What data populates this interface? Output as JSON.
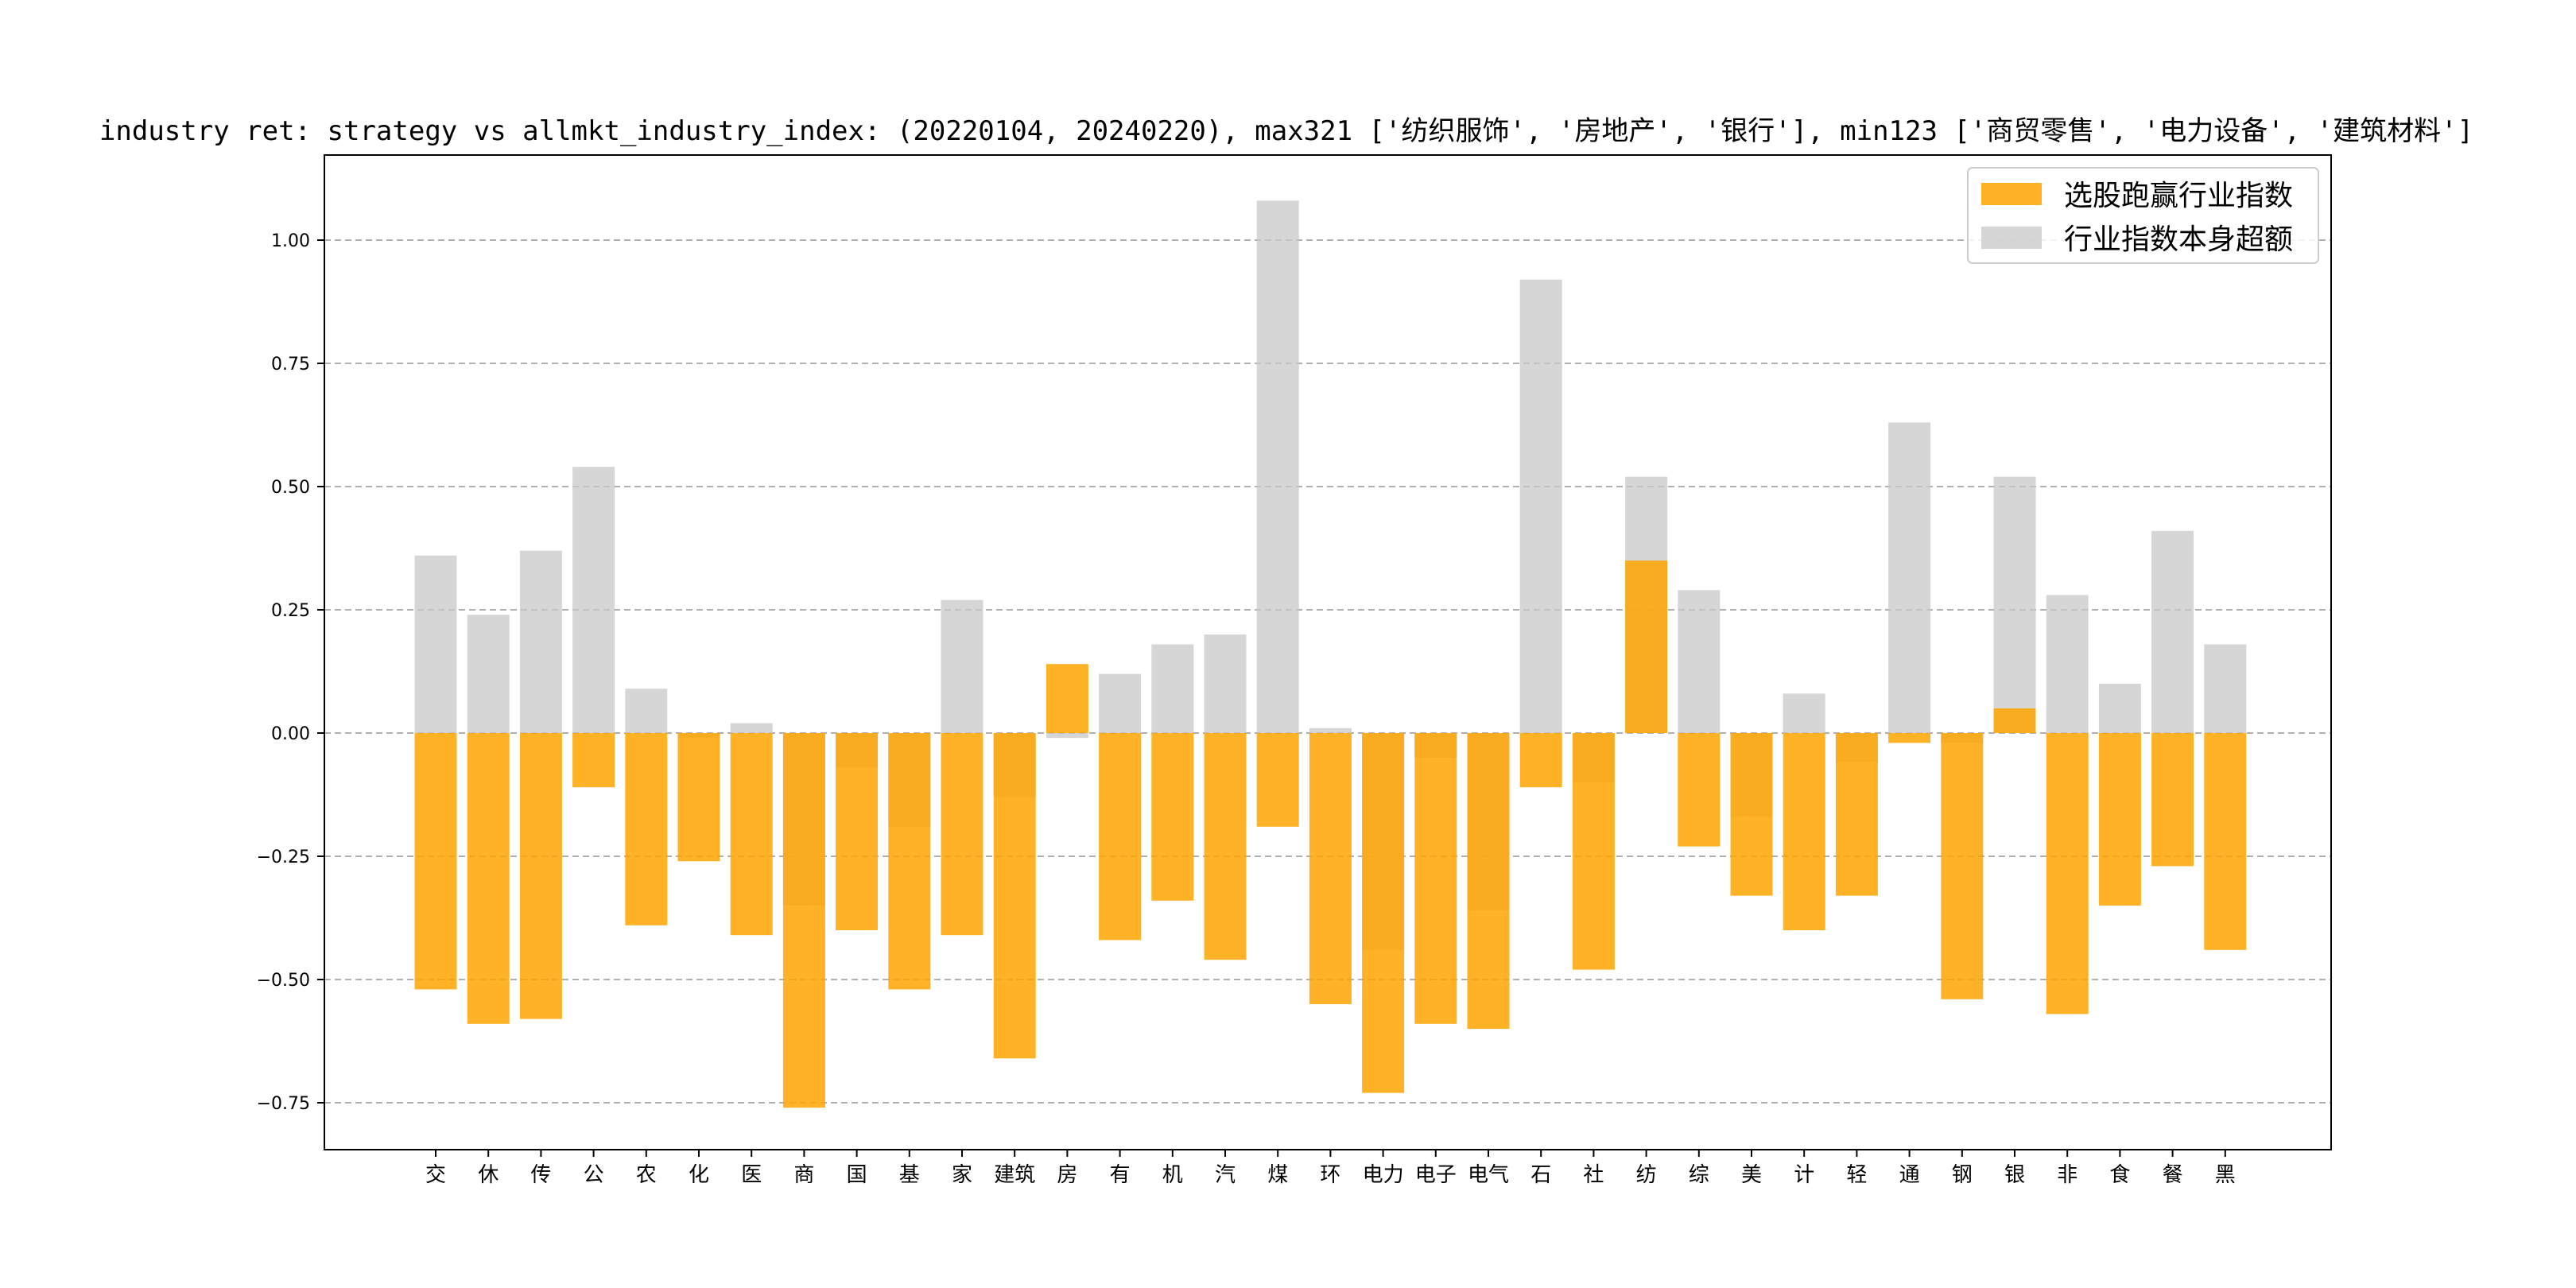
{
  "chart_data": {
    "type": "bar",
    "title": "industry ret: strategy vs allmkt_industry_index: (20220104, 20240220), max321 ['纺织服饰', '房地产', '银行'], min123 ['商贸零售', '电力设备', '建筑材料']",
    "xlabel": "",
    "ylabel": "",
    "ylim": [
      -0.85,
      1.17
    ],
    "yticks": [
      -0.75,
      -0.5,
      -0.25,
      0.0,
      0.25,
      0.5,
      0.75,
      1.0
    ],
    "ytick_labels": [
      "−0.75",
      "−0.50",
      "−0.25",
      "0.00",
      "0.25",
      "0.50",
      "0.75",
      "1.00"
    ],
    "grid": "y-dashed",
    "legend_position": "top-right",
    "categories": [
      "交",
      "休",
      "传",
      "公",
      "农",
      "化",
      "医",
      "商",
      "国",
      "基",
      "家",
      "建筑",
      "房",
      "有",
      "机",
      "汽",
      "煤",
      "环",
      "电力",
      "电子",
      "电气",
      "石",
      "社",
      "纺",
      "综",
      "美",
      "计",
      "轻",
      "通",
      "钢",
      "银",
      "非",
      "食",
      "餐",
      "黑"
    ],
    "series": [
      {
        "name": "选股跑赢行业指数",
        "color": "#FFA500",
        "values": [
          -0.52,
          -0.59,
          -0.58,
          -0.11,
          -0.39,
          -0.26,
          -0.41,
          -0.76,
          -0.4,
          -0.52,
          -0.41,
          -0.66,
          0.14,
          -0.42,
          -0.34,
          -0.46,
          -0.19,
          -0.55,
          -0.73,
          -0.59,
          -0.6,
          -0.11,
          -0.48,
          0.35,
          -0.23,
          -0.33,
          -0.4,
          -0.33,
          -0.02,
          -0.54,
          0.05,
          -0.57,
          -0.35,
          -0.27,
          -0.44
        ]
      },
      {
        "name": "行业指数本身超额",
        "color": "#C8C8C8",
        "values": [
          0.36,
          0.24,
          0.37,
          0.54,
          0.09,
          -0.01,
          0.02,
          -0.35,
          -0.07,
          -0.19,
          0.27,
          -0.13,
          -0.01,
          0.12,
          0.18,
          0.2,
          1.08,
          0.01,
          -0.44,
          -0.05,
          -0.36,
          0.92,
          -0.1,
          0.52,
          0.29,
          -0.17,
          0.08,
          -0.06,
          0.63,
          -0.02,
          0.52,
          0.28,
          0.1,
          0.41,
          0.18
        ]
      }
    ]
  }
}
